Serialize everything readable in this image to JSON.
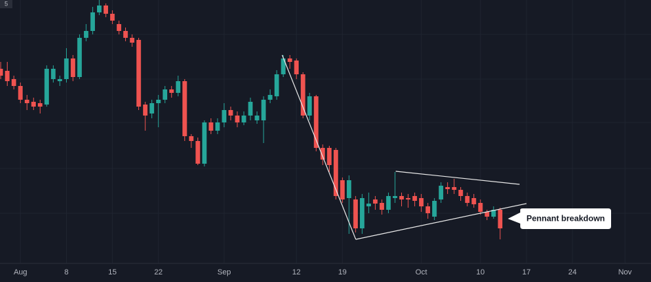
{
  "corner_label": "5",
  "chart_data": {
    "type": "candlestick",
    "annotation": "Pennant breakdown",
    "up_color": "#26a69a",
    "down_color": "#ef5350",
    "ylim": [
      20,
      400
    ],
    "grid": true,
    "categories": [
      null,
      null,
      null,
      "Aug",
      null,
      null,
      null,
      null,
      null,
      null,
      "8",
      null,
      null,
      null,
      null,
      null,
      null,
      "15",
      null,
      null,
      null,
      null,
      null,
      null,
      "22",
      null,
      null,
      null,
      null,
      null,
      null,
      null,
      null,
      null,
      "Sep",
      null,
      null,
      null,
      null,
      null,
      null,
      null,
      null,
      null,
      null,
      "12",
      null,
      null,
      null,
      null,
      null,
      null,
      "19",
      null,
      null,
      null,
      null,
      null,
      null,
      null,
      null,
      null,
      null,
      null,
      "Oct",
      null,
      null,
      null,
      null,
      null,
      null,
      null,
      null,
      "10",
      null,
      null,
      null,
      null,
      null,
      null,
      "17",
      null,
      null,
      null,
      null,
      null,
      null,
      "24",
      null,
      null,
      null,
      null,
      null,
      null,
      null,
      "Nov",
      null,
      null,
      null
    ],
    "open": [
      300,
      297,
      285,
      275,
      255,
      252,
      250,
      248,
      285,
      282,
      285,
      315,
      288,
      345,
      355,
      382,
      392,
      380,
      365,
      355,
      345,
      342,
      248,
      235,
      250,
      255,
      270,
      265,
      282,
      202,
      195,
      162,
      222,
      210,
      222,
      240,
      232,
      222,
      232,
      225,
      225,
      255,
      260,
      292,
      315,
      312,
      292,
      232,
      260,
      185,
      185,
      182,
      138,
      112,
      110,
      68,
      100,
      110,
      105,
      95,
      112,
      115,
      112,
      115,
      112,
      100,
      85,
      110,
      128,
      128,
      124,
      115,
      112,
      105,
      92,
      85,
      95,
      null,
      null,
      null,
      null,
      null,
      null,
      null,
      null,
      null,
      null,
      null,
      null,
      null,
      null,
      null,
      null,
      null,
      null,
      null,
      null,
      null,
      null
    ],
    "high": [
      310,
      310,
      290,
      280,
      262,
      258,
      255,
      305,
      305,
      290,
      330,
      320,
      350,
      365,
      390,
      400,
      395,
      385,
      370,
      360,
      350,
      345,
      252,
      255,
      262,
      275,
      275,
      290,
      285,
      205,
      200,
      225,
      228,
      228,
      250,
      245,
      238,
      238,
      258,
      238,
      260,
      270,
      298,
      320,
      320,
      315,
      295,
      265,
      262,
      190,
      188,
      185,
      142,
      145,
      115,
      118,
      120,
      115,
      110,
      120,
      150,
      120,
      118,
      120,
      118,
      105,
      112,
      135,
      135,
      140,
      128,
      120,
      118,
      110,
      95,
      100,
      98,
      null,
      null,
      null,
      null,
      null,
      null,
      null,
      null,
      null,
      null,
      null,
      null,
      null,
      null,
      null,
      null,
      null,
      null,
      null,
      null,
      null,
      null
    ],
    "low": [
      285,
      275,
      270,
      250,
      240,
      240,
      235,
      245,
      280,
      275,
      280,
      282,
      285,
      340,
      350,
      378,
      375,
      365,
      350,
      340,
      332,
      240,
      210,
      228,
      215,
      250,
      258,
      260,
      195,
      185,
      160,
      158,
      205,
      205,
      215,
      225,
      215,
      218,
      225,
      220,
      192,
      250,
      255,
      288,
      300,
      285,
      228,
      225,
      180,
      160,
      150,
      110,
      105,
      60,
      62,
      60,
      90,
      95,
      88,
      90,
      105,
      100,
      98,
      100,
      92,
      82,
      80,
      105,
      118,
      118,
      108,
      100,
      98,
      88,
      80,
      82,
      52,
      null,
      null,
      null,
      null,
      null,
      null,
      null,
      null,
      null,
      null,
      null,
      null,
      null,
      null,
      null,
      null,
      null,
      null,
      null,
      null,
      null,
      null
    ],
    "close": [
      290,
      282,
      275,
      255,
      250,
      245,
      245,
      300,
      300,
      285,
      315,
      288,
      345,
      355,
      382,
      392,
      380,
      370,
      355,
      345,
      338,
      245,
      232,
      250,
      255,
      270,
      265,
      282,
      202,
      195,
      162,
      222,
      210,
      222,
      240,
      232,
      222,
      232,
      252,
      232,
      255,
      262,
      292,
      315,
      310,
      292,
      232,
      260,
      185,
      168,
      160,
      115,
      110,
      138,
      68,
      112,
      104,
      104,
      95,
      115,
      115,
      110,
      110,
      108,
      100,
      90,
      108,
      130,
      125,
      124,
      115,
      105,
      103,
      92,
      85,
      95,
      68,
      null,
      null,
      null,
      null,
      null,
      null,
      null,
      null,
      null,
      null,
      null,
      null,
      null,
      null,
      null,
      null,
      null,
      null,
      null,
      null,
      null,
      null
    ]
  }
}
